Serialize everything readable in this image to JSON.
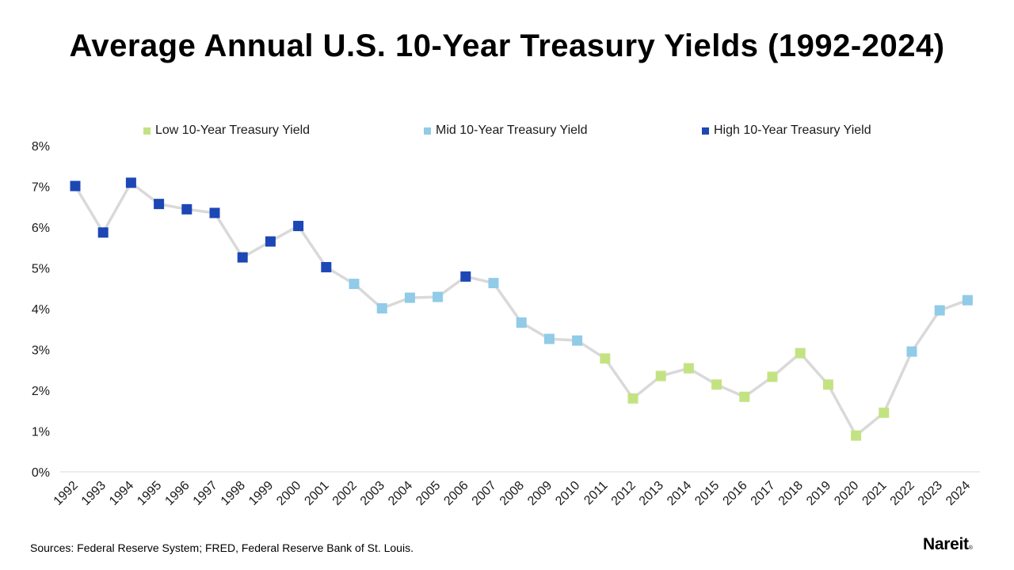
{
  "title": "Average Annual U.S. 10-Year Treasury Yields (1992-2024)",
  "source": "Sources: Federal Reserve System; FRED, Federal Reserve Bank of St. Louis.",
  "logo": "Nareit",
  "logo_mark": "®",
  "legend": [
    {
      "label": "Low 10-Year Treasury Yield",
      "color": "#c3e383"
    },
    {
      "label": "Mid 10-Year Treasury Yield",
      "color": "#90cbe8"
    },
    {
      "label": "High 10-Year Treasury Yield",
      "color": "#1c47b5"
    }
  ],
  "chart_data": {
    "type": "line",
    "title": "Average Annual U.S. 10-Year Treasury Yields (1992-2024)",
    "xlabel": "",
    "ylabel": "",
    "ylim": [
      0,
      8
    ],
    "y_ticks": [
      "0%",
      "1%",
      "2%",
      "3%",
      "4%",
      "5%",
      "6%",
      "7%",
      "8%"
    ],
    "grid": false,
    "legend_position": "top",
    "line_color": "#d9d9d9",
    "categories": [
      "1992",
      "1993",
      "1994",
      "1995",
      "1996",
      "1997",
      "1998",
      "1999",
      "2000",
      "2001",
      "2002",
      "2003",
      "2004",
      "2005",
      "2006",
      "2007",
      "2008",
      "2009",
      "2010",
      "2011",
      "2012",
      "2013",
      "2014",
      "2015",
      "2016",
      "2017",
      "2018",
      "2019",
      "2020",
      "2021",
      "2022",
      "2023",
      "2024"
    ],
    "values": [
      7.01,
      5.87,
      7.09,
      6.57,
      6.44,
      6.35,
      5.26,
      5.65,
      6.03,
      5.02,
      4.61,
      4.01,
      4.27,
      4.29,
      4.79,
      4.63,
      3.66,
      3.26,
      3.22,
      2.78,
      1.8,
      2.35,
      2.54,
      2.14,
      1.84,
      2.33,
      2.91,
      2.14,
      0.89,
      1.45,
      2.95,
      3.96,
      4.21
    ],
    "levels": [
      "High",
      "High",
      "High",
      "High",
      "High",
      "High",
      "High",
      "High",
      "High",
      "High",
      "Mid",
      "Mid",
      "Mid",
      "Mid",
      "High",
      "Mid",
      "Mid",
      "Mid",
      "Mid",
      "Low",
      "Low",
      "Low",
      "Low",
      "Low",
      "Low",
      "Low",
      "Low",
      "Low",
      "Low",
      "Low",
      "Mid",
      "Mid",
      "Mid"
    ],
    "level_colors": {
      "Low": "#c3e383",
      "Mid": "#90cbe8",
      "High": "#1c47b5"
    }
  }
}
